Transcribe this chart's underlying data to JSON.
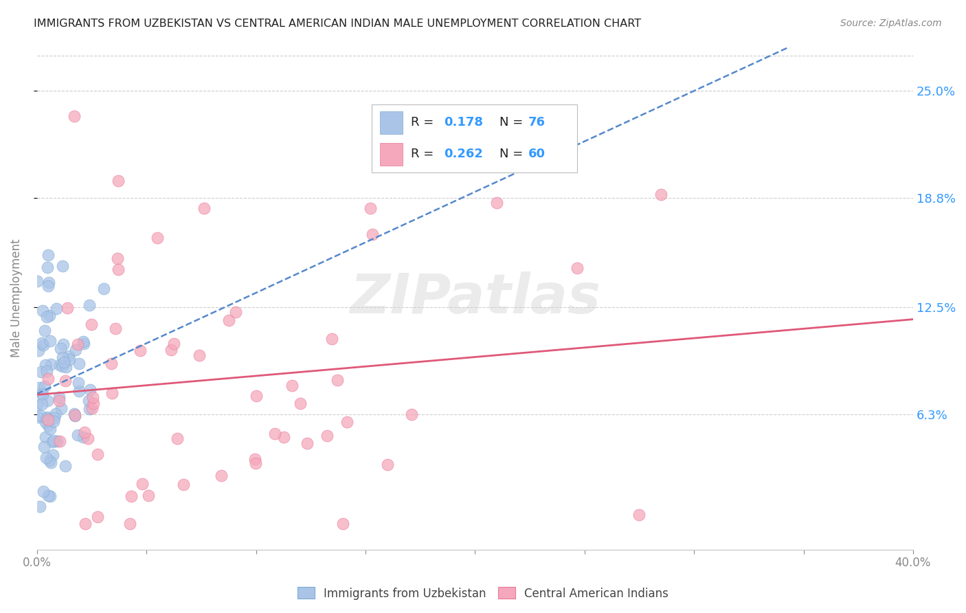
{
  "title": "IMMIGRANTS FROM UZBEKISTAN VS CENTRAL AMERICAN INDIAN MALE UNEMPLOYMENT CORRELATION CHART",
  "source": "Source: ZipAtlas.com",
  "ylabel": "Male Unemployment",
  "ytick_labels": [
    "6.3%",
    "12.5%",
    "18.8%",
    "25.0%"
  ],
  "ytick_values": [
    0.063,
    0.125,
    0.188,
    0.25
  ],
  "xlim": [
    0.0,
    0.4
  ],
  "ylim": [
    -0.015,
    0.275
  ],
  "color_uzbek_fill": "#aac4e8",
  "color_uzbek_edge": "#7aaad0",
  "color_ca_fill": "#f5a8bb",
  "color_ca_edge": "#e87898",
  "color_uzbek_line": "#5588cc",
  "color_ca_line": "#e05878",
  "color_blue_text": "#3399ff",
  "color_dark_text": "#222222",
  "color_gray_text": "#888888",
  "color_grid": "#cccccc",
  "background_color": "#ffffff",
  "watermark": "ZIPatlas",
  "legend_r1": "0.178",
  "legend_n1": "76",
  "legend_r2": "0.262",
  "legend_n2": "60"
}
